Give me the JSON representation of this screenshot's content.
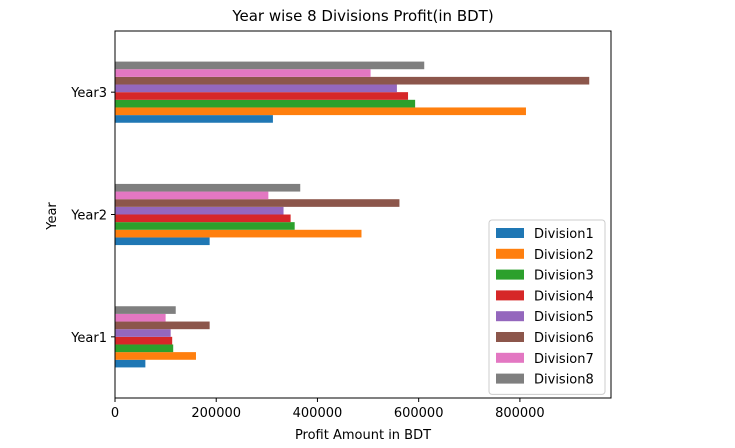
{
  "chart_data": {
    "type": "bar",
    "orientation": "horizontal",
    "title": "Year wise 8 Divisions Profit(in BDT)",
    "xlabel": "Profit Amount in BDT",
    "ylabel": "Year",
    "categories": [
      "Year1",
      "Year2",
      "Year3"
    ],
    "xlim": [
      0,
      980000
    ],
    "xticks": [
      0,
      200000,
      400000,
      600000,
      800000
    ],
    "xtick_labels": [
      "0",
      "200000",
      "400000",
      "600000",
      "800000"
    ],
    "legend_position": "lower-right",
    "series": [
      {
        "name": "Division1",
        "color": "#1f77b4",
        "values": [
          60000,
          187000,
          312000
        ]
      },
      {
        "name": "Division2",
        "color": "#ff7f0e",
        "values": [
          160000,
          487000,
          812000
        ]
      },
      {
        "name": "Division3",
        "color": "#2ca02c",
        "values": [
          115000,
          355000,
          593000
        ]
      },
      {
        "name": "Division4",
        "color": "#d62728",
        "values": [
          113000,
          347000,
          579000
        ]
      },
      {
        "name": "Division5",
        "color": "#9467bd",
        "values": [
          110000,
          333000,
          557000
        ]
      },
      {
        "name": "Division6",
        "color": "#8c564b",
        "values": [
          187000,
          562000,
          937000
        ]
      },
      {
        "name": "Division7",
        "color": "#e377c2",
        "values": [
          100000,
          303000,
          505000
        ]
      },
      {
        "name": "Division8",
        "color": "#7f7f7f",
        "values": [
          120000,
          366000,
          611000
        ]
      }
    ]
  }
}
